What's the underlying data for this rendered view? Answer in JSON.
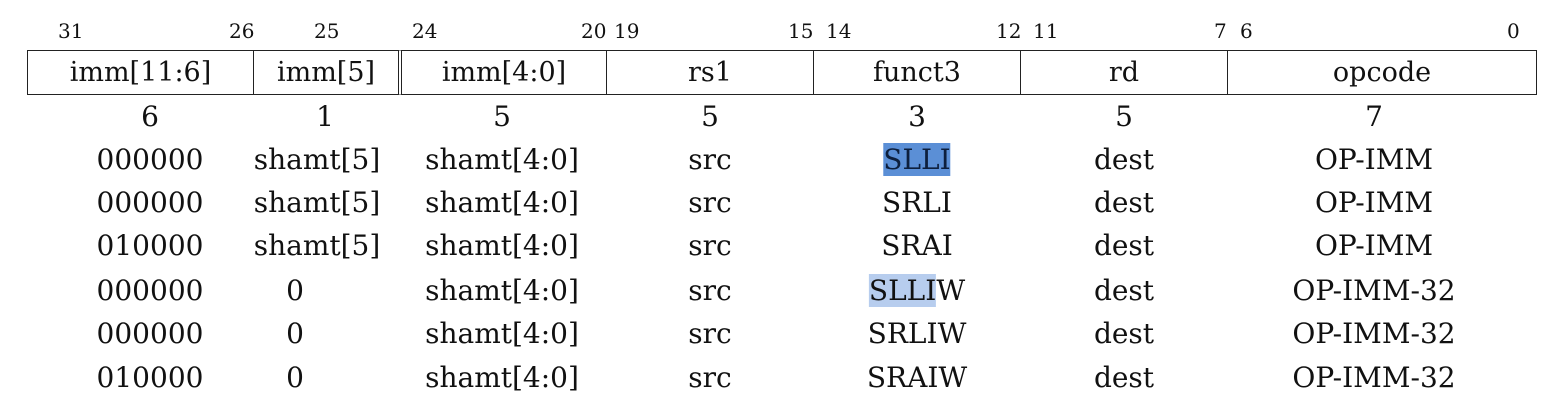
{
  "bit_positions": [
    "31",
    "26",
    "25",
    "24",
    "20",
    "19",
    "15",
    "14",
    "12",
    "11",
    "7",
    "6",
    "0"
  ],
  "fields": [
    "imm[11:6]",
    "imm[5]",
    "imm[4:0]",
    "rs1",
    "funct3",
    "rd",
    "opcode"
  ],
  "widths": [
    "6",
    "1",
    "5",
    "5",
    "3",
    "5",
    "7"
  ],
  "rows": [
    [
      "000000",
      "shamt[5]",
      "shamt[4:0]",
      "src",
      "SLLI",
      "dest",
      "OP-IMM"
    ],
    [
      "000000",
      "shamt[5]",
      "shamt[4:0]",
      "src",
      "SRLI",
      "dest",
      "OP-IMM"
    ],
    [
      "010000",
      "shamt[5]",
      "shamt[4:0]",
      "src",
      "SRAI",
      "dest",
      "OP-IMM"
    ],
    [
      "000000",
      "0",
      "shamt[4:0]",
      "src",
      "SLLIW",
      "dest",
      "OP-IMM-32"
    ],
    [
      "000000",
      "0",
      "shamt[4:0]",
      "src",
      "SRLIW",
      "dest",
      "OP-IMM-32"
    ],
    [
      "010000",
      "0",
      "shamt[4:0]",
      "src",
      "SRAIW",
      "dest",
      "OP-IMM-32"
    ]
  ],
  "highlights": [
    {
      "row": 0,
      "col": 4,
      "text": "SLLI",
      "color": "#5b8fd6"
    },
    {
      "row": 3,
      "col": 4,
      "text": "SLLI",
      "color": "#b7cdee"
    }
  ]
}
